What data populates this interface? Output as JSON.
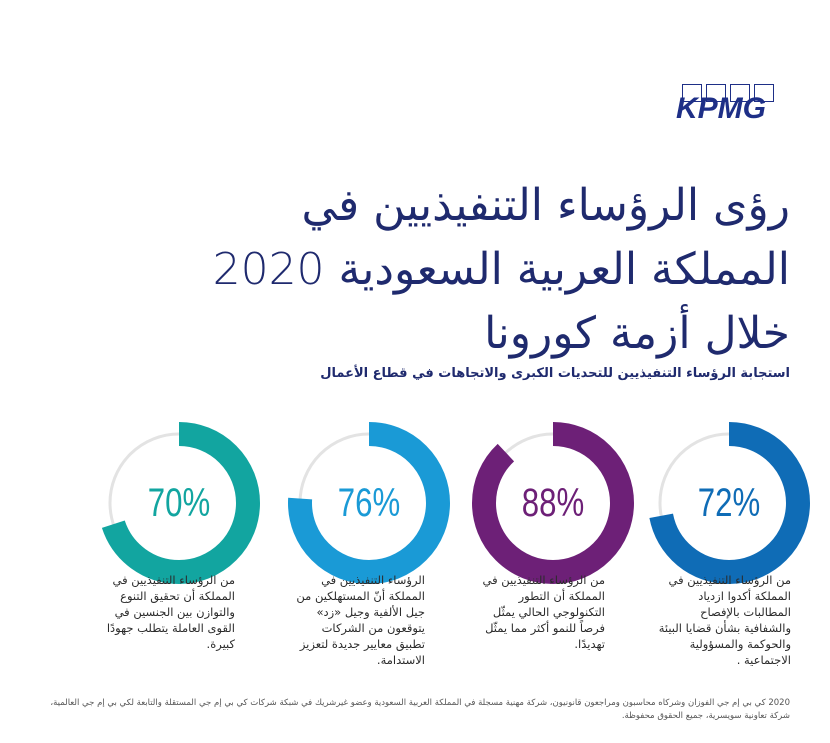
{
  "logo": {
    "text": "KPMG",
    "color": "#1e2f87"
  },
  "title": {
    "lines": [
      "رؤى الرؤساء التنفيذيين في",
      "المملكة العربية السعودية 2020",
      "خلال أزمة كورونا"
    ]
  },
  "subtitle": "استجابة  الرؤساء التنفيذيين للتحديات الكبرى والاتجاهات في قطاع الأعمال",
  "stats": [
    {
      "percent_label": "72%",
      "value": 72,
      "color": "#0f6cb6",
      "description": "من الرؤساء التنفيذيين في المملكة أكدوا ازدياد المطالبات بالإفصاح والشفافية بشأن قضايا البيئة والحوكمة والمسؤولية الاجتماعية ."
    },
    {
      "percent_label": "88%",
      "value": 88,
      "color": "#6d2077",
      "description": "من الرؤساء التنفيذيين في المملكة أن التطور التكنولوجي الحالي يمثّل فرصاً للنمو أكثر مما يمثّل تهديدًا."
    },
    {
      "percent_label": "76%",
      "value": 76,
      "color": "#1a9ad6",
      "description": "الرؤساء التنفيذيين في المملكة أنّ المستهلكين من جيل الألفية وجيل «زد» يتوقعون من الشركات تطبيق معايير جديدة لتعزيز الاستدامة."
    },
    {
      "percent_label": "70%",
      "value": 70,
      "color": "#12a5a0",
      "description": "من الرؤساء التنفيذيين في المملكة أن تحقيق التنوع والتوازن بين الجنسين في القوى العاملة يتطلب جهودًا كبيرة."
    }
  ],
  "footer": "2020 كي بي إم جي الفوزان وشركاه محاسبون ومراجعون قانونيون، شركة مهنية مسجلة في المملكة العربية السعودية وعضو غيرشريك في شبكة شركات كي بي إم جي المستقلة والتابعة لكي بي إم جي العالمية، شركة تعاونية سويسرية، جميع الحقوق محفوظة."
}
